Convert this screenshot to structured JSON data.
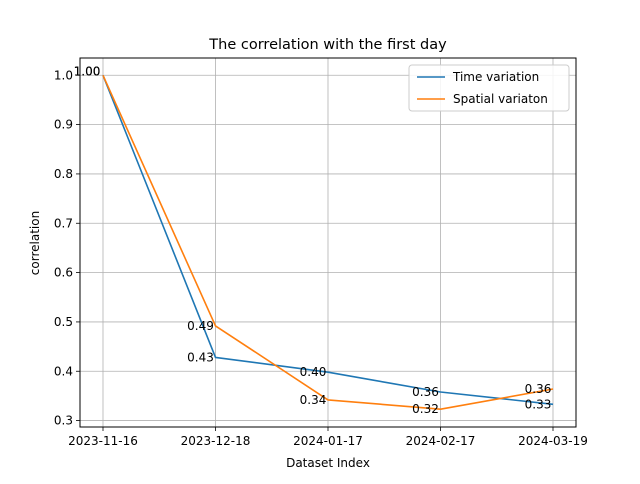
{
  "chart_data": {
    "type": "line",
    "title": "The correlation with the first day",
    "xlabel": "Dataset Index",
    "ylabel": "correlation",
    "categories": [
      "2023-11-16",
      "2023-12-18",
      "2024-01-17",
      "2024-02-17",
      "2024-03-19"
    ],
    "ylim": [
      0.287,
      1.035
    ],
    "yticks": [
      "0.3",
      "0.4",
      "0.5",
      "0.6",
      "0.7",
      "0.8",
      "0.9",
      "1.0"
    ],
    "grid": true,
    "legend_position": "upper-right",
    "series": [
      {
        "name": "Time variation",
        "color": "#1f77b4",
        "values": [
          1.0,
          0.428,
          0.398,
          0.358,
          0.333
        ],
        "labels": [
          "1.00",
          "0.43",
          "0.40",
          "0.36",
          "0.33"
        ]
      },
      {
        "name": "Spatial variaton",
        "color": "#ff7f0e",
        "values": [
          1.0,
          0.492,
          0.342,
          0.323,
          0.364
        ],
        "labels": [
          "1.00",
          "0.49",
          "0.34",
          "0.32",
          "0.36"
        ]
      }
    ]
  }
}
